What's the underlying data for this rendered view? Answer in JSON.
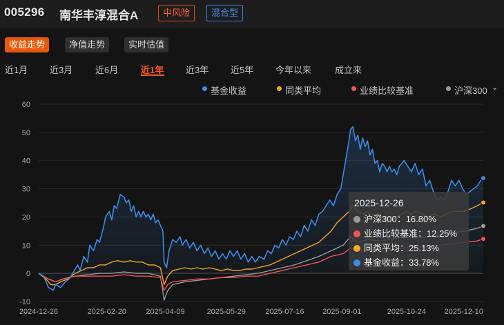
{
  "header": {
    "fund_code": "005296",
    "fund_name": "南华丰淳混合A",
    "risk_badge": "中风险",
    "type_badge": "混合型"
  },
  "tabs": [
    {
      "label": "收益走势",
      "active": true
    },
    {
      "label": "净值走势",
      "active": false
    },
    {
      "label": "实时估值",
      "active": false
    }
  ],
  "periods": [
    {
      "label": "近1月",
      "active": false
    },
    {
      "label": "近3月",
      "active": false
    },
    {
      "label": "近6月",
      "active": false
    },
    {
      "label": "近1年",
      "active": true
    },
    {
      "label": "近3年",
      "active": false
    },
    {
      "label": "近5年",
      "active": false
    },
    {
      "label": "今年以来",
      "active": false
    },
    {
      "label": "成立来",
      "active": false
    }
  ],
  "legend": [
    {
      "label": "基金收益",
      "color": "#3d8ae6"
    },
    {
      "label": "同类平均",
      "color": "#f5a623"
    },
    {
      "label": "业绩比较基准",
      "color": "#f05454"
    },
    {
      "label": "沪深300",
      "color": "#9a9a9a"
    }
  ],
  "tooltip": {
    "date": "2025-12-26",
    "rows": [
      {
        "label": "沪深300：16.80%",
        "color": "#9a9a9a"
      },
      {
        "label": "业绩比较基准：12.25%",
        "color": "#f05454"
      },
      {
        "label": "同类平均：25.13%",
        "color": "#f5a623"
      },
      {
        "label": "基金收益：33.78%",
        "color": "#3d8ae6"
      }
    ]
  },
  "chart_data": {
    "type": "line",
    "ylim": [
      -10,
      60
    ],
    "yticks": [
      -10,
      0,
      10,
      20,
      30,
      40,
      50,
      60
    ],
    "xtick_labels": [
      "2024-12-26",
      "2025-02-20",
      "2025-04-09",
      "2025-05-29",
      "2025-07-16",
      "2025-09-01",
      "2025-10-24",
      "2025-12-10"
    ],
    "xtick_days": [
      0,
      56,
      104,
      154,
      202,
      249,
      302,
      349
    ],
    "x_end_day": 365,
    "series": [
      {
        "name": "基金收益",
        "color": "#3d8ae6",
        "points": [
          [
            0,
            0
          ],
          [
            4,
            -1
          ],
          [
            8,
            -5
          ],
          [
            12,
            -6
          ],
          [
            14,
            -4
          ],
          [
            18,
            -5
          ],
          [
            22,
            -3
          ],
          [
            25,
            -2
          ],
          [
            28,
            0
          ],
          [
            32,
            3
          ],
          [
            34,
            1
          ],
          [
            37,
            6
          ],
          [
            40,
            4
          ],
          [
            42,
            10
          ],
          [
            45,
            8
          ],
          [
            48,
            12
          ],
          [
            50,
            11
          ],
          [
            53,
            16
          ],
          [
            55,
            20
          ],
          [
            58,
            22
          ],
          [
            60,
            19
          ],
          [
            62,
            24
          ],
          [
            64,
            23
          ],
          [
            67,
            28
          ],
          [
            70,
            27
          ],
          [
            72,
            25
          ],
          [
            74,
            26
          ],
          [
            76,
            22
          ],
          [
            78,
            24
          ],
          [
            80,
            20
          ],
          [
            82,
            22
          ],
          [
            84,
            20
          ],
          [
            86,
            22
          ],
          [
            88,
            20
          ],
          [
            90,
            21
          ],
          [
            92,
            19
          ],
          [
            94,
            21
          ],
          [
            96,
            18
          ],
          [
            98,
            19
          ],
          [
            100,
            17
          ],
          [
            102,
            15
          ],
          [
            103,
            4
          ],
          [
            105,
            2
          ],
          [
            107,
            8
          ],
          [
            110,
            12
          ],
          [
            113,
            11
          ],
          [
            116,
            13
          ],
          [
            118,
            10
          ],
          [
            121,
            12
          ],
          [
            124,
            9
          ],
          [
            127,
            11
          ],
          [
            130,
            8
          ],
          [
            133,
            10
          ],
          [
            136,
            7
          ],
          [
            139,
            9
          ],
          [
            142,
            6
          ],
          [
            145,
            8
          ],
          [
            148,
            5
          ],
          [
            151,
            7
          ],
          [
            154,
            5
          ],
          [
            157,
            8
          ],
          [
            160,
            6
          ],
          [
            163,
            8
          ],
          [
            166,
            5
          ],
          [
            169,
            7
          ],
          [
            172,
            4
          ],
          [
            175,
            6
          ],
          [
            178,
            4
          ],
          [
            181,
            6
          ],
          [
            185,
            5
          ],
          [
            188,
            8
          ],
          [
            191,
            7
          ],
          [
            194,
            10
          ],
          [
            197,
            9
          ],
          [
            200,
            12
          ],
          [
            203,
            10
          ],
          [
            206,
            13
          ],
          [
            209,
            12
          ],
          [
            212,
            15
          ],
          [
            215,
            13
          ],
          [
            218,
            17
          ],
          [
            221,
            15
          ],
          [
            224,
            19
          ],
          [
            227,
            17
          ],
          [
            230,
            21
          ],
          [
            233,
            22
          ],
          [
            236,
            24
          ],
          [
            239,
            26
          ],
          [
            242,
            24
          ],
          [
            245,
            28
          ],
          [
            248,
            30
          ],
          [
            250,
            35
          ],
          [
            252,
            40
          ],
          [
            254,
            45
          ],
          [
            256,
            51
          ],
          [
            258,
            52
          ],
          [
            260,
            47
          ],
          [
            262,
            49
          ],
          [
            264,
            44
          ],
          [
            266,
            48
          ],
          [
            268,
            45
          ],
          [
            270,
            47
          ],
          [
            272,
            42
          ],
          [
            274,
            44
          ],
          [
            276,
            39
          ],
          [
            278,
            40
          ],
          [
            280,
            36
          ],
          [
            282,
            39
          ],
          [
            284,
            38
          ],
          [
            286,
            36
          ],
          [
            288,
            38
          ],
          [
            290,
            36
          ],
          [
            292,
            37
          ],
          [
            294,
            35
          ],
          [
            296,
            38
          ],
          [
            298,
            39
          ],
          [
            300,
            40
          ],
          [
            303,
            38
          ],
          [
            306,
            36
          ],
          [
            309,
            39
          ],
          [
            312,
            35
          ],
          [
            315,
            37
          ],
          [
            318,
            31
          ],
          [
            321,
            33
          ],
          [
            324,
            29
          ],
          [
            327,
            26
          ],
          [
            330,
            27
          ],
          [
            333,
            26
          ],
          [
            336,
            29
          ],
          [
            339,
            33
          ],
          [
            342,
            31
          ],
          [
            345,
            33
          ],
          [
            348,
            30
          ],
          [
            351,
            28
          ],
          [
            354,
            29
          ],
          [
            357,
            30
          ],
          [
            360,
            31
          ],
          [
            363,
            33
          ],
          [
            365,
            33.78
          ]
        ]
      },
      {
        "name": "同类平均",
        "color": "#f5a623",
        "points": [
          [
            0,
            0
          ],
          [
            6,
            -2
          ],
          [
            10,
            -4
          ],
          [
            14,
            -4
          ],
          [
            18,
            -3
          ],
          [
            24,
            -2
          ],
          [
            30,
            0
          ],
          [
            35,
            1
          ],
          [
            40,
            2
          ],
          [
            45,
            2
          ],
          [
            50,
            3
          ],
          [
            55,
            3
          ],
          [
            60,
            4
          ],
          [
            65,
            4.5
          ],
          [
            70,
            4
          ],
          [
            75,
            4.5
          ],
          [
            80,
            4
          ],
          [
            85,
            4
          ],
          [
            90,
            3
          ],
          [
            95,
            3
          ],
          [
            100,
            2
          ],
          [
            103,
            -4
          ],
          [
            106,
            -1
          ],
          [
            110,
            1
          ],
          [
            115,
            1.5
          ],
          [
            120,
            2
          ],
          [
            125,
            1.5
          ],
          [
            130,
            2
          ],
          [
            135,
            1.5
          ],
          [
            140,
            2
          ],
          [
            145,
            1.5
          ],
          [
            150,
            1
          ],
          [
            155,
            1.5
          ],
          [
            160,
            1
          ],
          [
            165,
            1
          ],
          [
            170,
            1.5
          ],
          [
            175,
            1.5
          ],
          [
            180,
            2
          ],
          [
            185,
            2.5
          ],
          [
            190,
            3
          ],
          [
            195,
            4
          ],
          [
            200,
            5
          ],
          [
            205,
            6
          ],
          [
            210,
            7
          ],
          [
            215,
            8
          ],
          [
            220,
            9
          ],
          [
            225,
            10
          ],
          [
            230,
            11
          ],
          [
            235,
            13
          ],
          [
            240,
            15
          ],
          [
            245,
            18
          ],
          [
            250,
            20
          ],
          [
            255,
            22
          ],
          [
            258,
            24
          ],
          [
            262,
            22
          ],
          [
            266,
            21
          ],
          [
            270,
            22
          ],
          [
            274,
            20
          ],
          [
            278,
            21
          ],
          [
            282,
            19
          ],
          [
            286,
            20
          ],
          [
            290,
            19
          ],
          [
            294,
            20
          ],
          [
            298,
            21
          ],
          [
            302,
            22
          ],
          [
            306,
            21
          ],
          [
            310,
            22
          ],
          [
            315,
            21
          ],
          [
            320,
            20
          ],
          [
            325,
            21
          ],
          [
            330,
            20
          ],
          [
            335,
            21
          ],
          [
            340,
            22
          ],
          [
            345,
            22
          ],
          [
            350,
            22
          ],
          [
            355,
            23
          ],
          [
            360,
            24
          ],
          [
            365,
            25.13
          ]
        ]
      },
      {
        "name": "业绩比较基准",
        "color": "#f05454",
        "points": [
          [
            0,
            0
          ],
          [
            8,
            -2
          ],
          [
            14,
            -3
          ],
          [
            20,
            -2
          ],
          [
            30,
            -1
          ],
          [
            40,
            -1
          ],
          [
            50,
            -1
          ],
          [
            60,
            -1
          ],
          [
            70,
            -0.5
          ],
          [
            80,
            -1
          ],
          [
            90,
            -1
          ],
          [
            100,
            -1.5
          ],
          [
            103,
            -6
          ],
          [
            106,
            -4
          ],
          [
            110,
            -3
          ],
          [
            120,
            -2.5
          ],
          [
            130,
            -2
          ],
          [
            140,
            -2
          ],
          [
            150,
            -1.5
          ],
          [
            160,
            -1.5
          ],
          [
            170,
            -1
          ],
          [
            180,
            -1
          ],
          [
            190,
            0
          ],
          [
            200,
            1
          ],
          [
            210,
            2
          ],
          [
            220,
            3
          ],
          [
            230,
            4
          ],
          [
            240,
            6
          ],
          [
            250,
            7
          ],
          [
            256,
            9
          ],
          [
            262,
            8
          ],
          [
            270,
            8.5
          ],
          [
            280,
            8
          ],
          [
            290,
            8.5
          ],
          [
            300,
            9
          ],
          [
            310,
            9
          ],
          [
            320,
            9.5
          ],
          [
            330,
            10
          ],
          [
            340,
            10.5
          ],
          [
            350,
            11
          ],
          [
            360,
            11.5
          ],
          [
            365,
            12.25
          ]
        ]
      },
      {
        "name": "沪深300",
        "color": "#9a9a9a",
        "points": [
          [
            0,
            0
          ],
          [
            8,
            -2
          ],
          [
            14,
            -3
          ],
          [
            20,
            -2
          ],
          [
            30,
            -1
          ],
          [
            40,
            -0.5
          ],
          [
            50,
            0
          ],
          [
            60,
            0
          ],
          [
            70,
            0.5
          ],
          [
            80,
            0
          ],
          [
            90,
            0
          ],
          [
            100,
            -1
          ],
          [
            103,
            -9.5
          ],
          [
            106,
            -6
          ],
          [
            110,
            -4
          ],
          [
            120,
            -3
          ],
          [
            130,
            -2.5
          ],
          [
            140,
            -2
          ],
          [
            150,
            -1.5
          ],
          [
            160,
            -1
          ],
          [
            170,
            -0.5
          ],
          [
            180,
            0
          ],
          [
            190,
            1
          ],
          [
            200,
            2
          ],
          [
            210,
            3
          ],
          [
            220,
            4.5
          ],
          [
            230,
            6
          ],
          [
            240,
            8
          ],
          [
            250,
            10
          ],
          [
            256,
            13
          ],
          [
            262,
            11
          ],
          [
            270,
            12
          ],
          [
            280,
            11.5
          ],
          [
            290,
            12
          ],
          [
            300,
            13
          ],
          [
            310,
            12.5
          ],
          [
            320,
            13
          ],
          [
            330,
            14
          ],
          [
            340,
            14.5
          ],
          [
            350,
            15
          ],
          [
            360,
            16
          ],
          [
            365,
            16.8
          ]
        ]
      }
    ]
  }
}
